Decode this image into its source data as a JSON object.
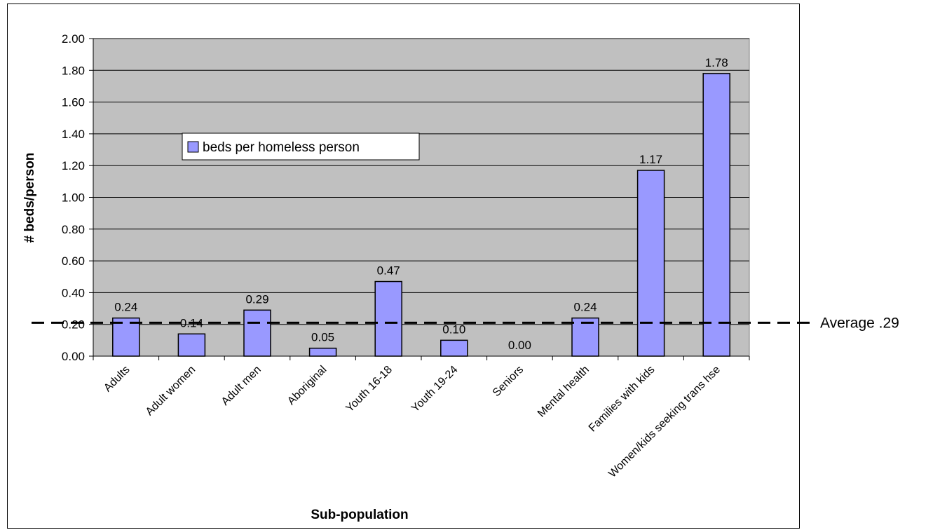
{
  "chart_data": {
    "type": "bar",
    "categories": [
      "Adults",
      "Adult women",
      "Adult men",
      "Aboriginal",
      "Youth 16-18",
      "Youth 19-24",
      "Seniors",
      "Mental health",
      "Families with kids",
      "Women/kids seeking trans hse"
    ],
    "series": [
      {
        "name": "beds per homeless person",
        "values": [
          0.24,
          0.14,
          0.29,
          0.05,
          0.47,
          0.1,
          0.0,
          0.24,
          1.17,
          1.78
        ]
      }
    ],
    "data_labels": [
      "0.24",
      "0.14",
      "0.29",
      "0.05",
      "0.47",
      "0.10",
      "0.00",
      "0.24",
      "1.17",
      "1.78"
    ],
    "yticks": [
      "0.00",
      "0.20",
      "0.40",
      "0.60",
      "0.80",
      "1.00",
      "1.20",
      "1.40",
      "1.60",
      "1.80",
      "2.00"
    ],
    "title": "",
    "xlabel": "Sub-population",
    "ylabel": "# beds/person",
    "ylim": [
      0,
      2.0
    ],
    "grid": true,
    "legend_position": "upper-left",
    "reference_line": {
      "value": 0.29,
      "label": "Average .29",
      "style": "dashed"
    },
    "colors": {
      "bar": "#9999ff",
      "plot_background": "#c0c0c0"
    }
  }
}
